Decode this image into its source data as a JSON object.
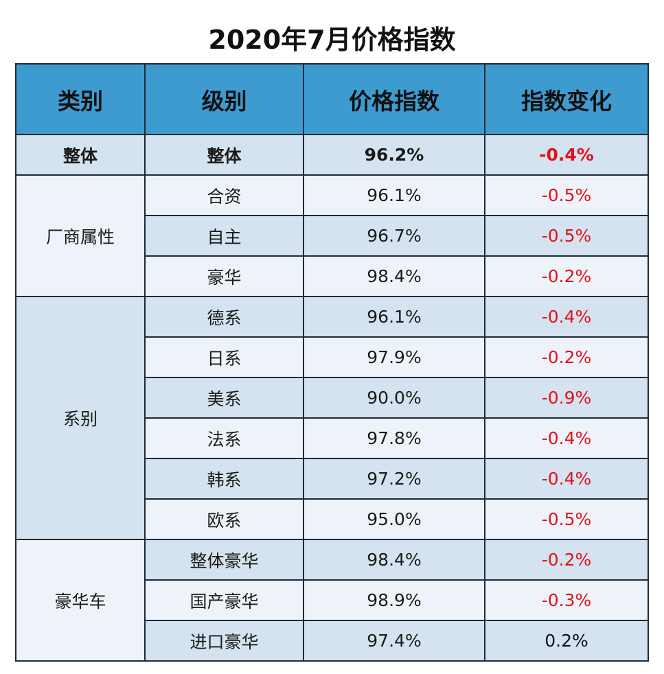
{
  "title": "2020年7月价格指数",
  "chart_data": {
    "type": "table",
    "title": "2020年7月价格指数",
    "columns": [
      "类别",
      "级别",
      "价格指数",
      "指数变化"
    ],
    "rows": [
      {
        "category": "整体",
        "level": "整体",
        "index": "96.2%",
        "change": "-0.4%",
        "change_value": -0.4
      },
      {
        "category": "厂商属性",
        "level": "合资",
        "index": "96.1%",
        "change": "-0.5%",
        "change_value": -0.5
      },
      {
        "category": "厂商属性",
        "level": "自主",
        "index": "96.7%",
        "change": "-0.5%",
        "change_value": -0.5
      },
      {
        "category": "厂商属性",
        "level": "豪华",
        "index": "98.4%",
        "change": "-0.2%",
        "change_value": -0.2
      },
      {
        "category": "系别",
        "level": "德系",
        "index": "96.1%",
        "change": "-0.4%",
        "change_value": -0.4
      },
      {
        "category": "系别",
        "level": "日系",
        "index": "97.9%",
        "change": "-0.2%",
        "change_value": -0.2
      },
      {
        "category": "系别",
        "level": "美系",
        "index": "90.0%",
        "change": "-0.9%",
        "change_value": -0.9
      },
      {
        "category": "系别",
        "level": "法系",
        "index": "97.8%",
        "change": "-0.4%",
        "change_value": -0.4
      },
      {
        "category": "系别",
        "level": "韩系",
        "index": "97.2%",
        "change": "-0.4%",
        "change_value": -0.4
      },
      {
        "category": "系别",
        "level": "欧系",
        "index": "95.0%",
        "change": "-0.5%",
        "change_value": -0.5
      },
      {
        "category": "豪华车",
        "level": "整体豪华",
        "index": "98.4%",
        "change": "-0.2%",
        "change_value": -0.2
      },
      {
        "category": "豪华车",
        "level": "国产豪华",
        "index": "98.9%",
        "change": "-0.3%",
        "change_value": -0.3
      },
      {
        "category": "豪华车",
        "level": "进口豪华",
        "index": "97.4%",
        "change": "0.2%",
        "change_value": 0.2
      }
    ]
  },
  "colors": {
    "header_bg": "#3e9bd0",
    "row_dark": "#d4e3ef",
    "row_light": "#edf3f9",
    "negative": "#e0121c",
    "border": "#1e2a38"
  }
}
